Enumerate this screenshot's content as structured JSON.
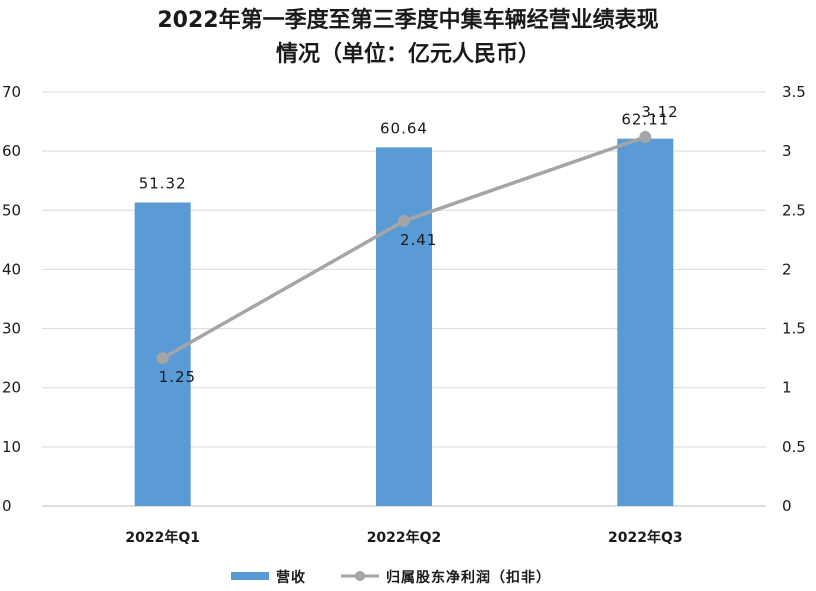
{
  "chart_data": {
    "type": "bar",
    "title_lines": [
      "2022年第一季度至第三季度中集车辆经营业绩表现",
      "情况（单位：亿元人民币）"
    ],
    "categories": [
      "2022年Q1",
      "2022年Q2",
      "2022年Q3"
    ],
    "series": [
      {
        "name": "营收",
        "type": "bar",
        "axis": "left",
        "values": [
          51.32,
          60.64,
          62.11
        ],
        "labels": [
          "51.32",
          "60.64",
          "62.11"
        ],
        "color": "#5b9bd5"
      },
      {
        "name": "归属股东净利润（扣非）",
        "type": "line",
        "axis": "right",
        "values": [
          1.25,
          2.41,
          3.12
        ],
        "labels": [
          "1.25",
          "2.41",
          "3.12"
        ],
        "color": "#a5a5a5"
      }
    ],
    "y_left": {
      "range": [
        0,
        70
      ],
      "ticks": [
        "0",
        "10",
        "20",
        "30",
        "40",
        "50",
        "60",
        "70"
      ]
    },
    "y_right": {
      "range": [
        0,
        3.5
      ],
      "ticks": [
        "0",
        "0.5",
        "1",
        "1.5",
        "2",
        "2.5",
        "3",
        "3.5"
      ]
    },
    "grid": true,
    "legend_position": "bottom"
  }
}
